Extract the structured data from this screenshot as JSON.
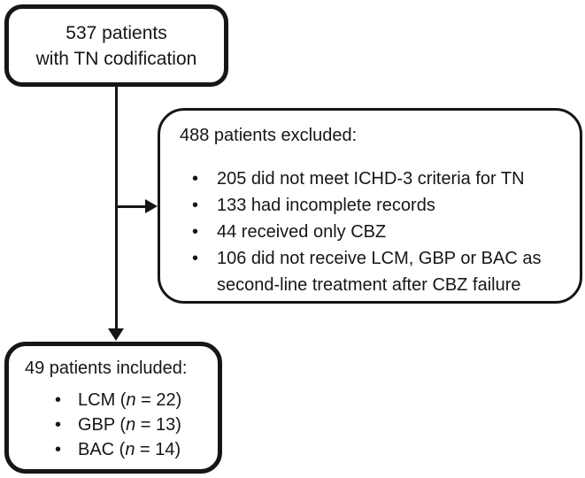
{
  "diagram": {
    "bullet_glyph": "•",
    "colors": {
      "line": "#161616",
      "background": "#ffffff"
    },
    "top_box": {
      "line1": "537 patients",
      "line2": "with TN codification"
    },
    "excluded_box": {
      "heading": "488 patients excluded:",
      "items": [
        "205 did not meet ICHD-3 criteria for TN",
        "133 had incomplete records",
        "44 received only CBZ",
        "106 did not receive LCM, GBP or BAC as second-line treatment after CBZ failure"
      ]
    },
    "included_box": {
      "heading": "49 patients included:",
      "items": [
        {
          "prefix": "LCM (",
          "n_symbol": "n",
          "suffix": " = 22)"
        },
        {
          "prefix": "GBP (",
          "n_symbol": "n",
          "suffix": " = 13)"
        },
        {
          "prefix": "BAC (",
          "n_symbol": "n",
          "suffix": " = 14)"
        }
      ]
    }
  }
}
